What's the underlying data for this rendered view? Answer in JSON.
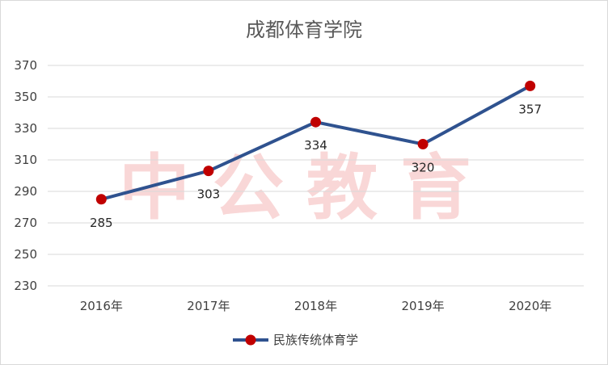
{
  "watermark": "中公教育",
  "chart_data": {
    "type": "line",
    "title": "成都体育学院",
    "categories": [
      "2016年",
      "2017年",
      "2018年",
      "2019年",
      "2020年"
    ],
    "series": [
      {
        "name": "民族传统体育学",
        "values": [
          285,
          303,
          334,
          320,
          357
        ],
        "line_color": "#2F528F",
        "marker_color": "#C00000"
      }
    ],
    "ylim": [
      230,
      370
    ],
    "yticks": [
      230,
      250,
      270,
      290,
      310,
      330,
      350,
      370
    ],
    "grid": true,
    "legend_position": "bottom"
  }
}
